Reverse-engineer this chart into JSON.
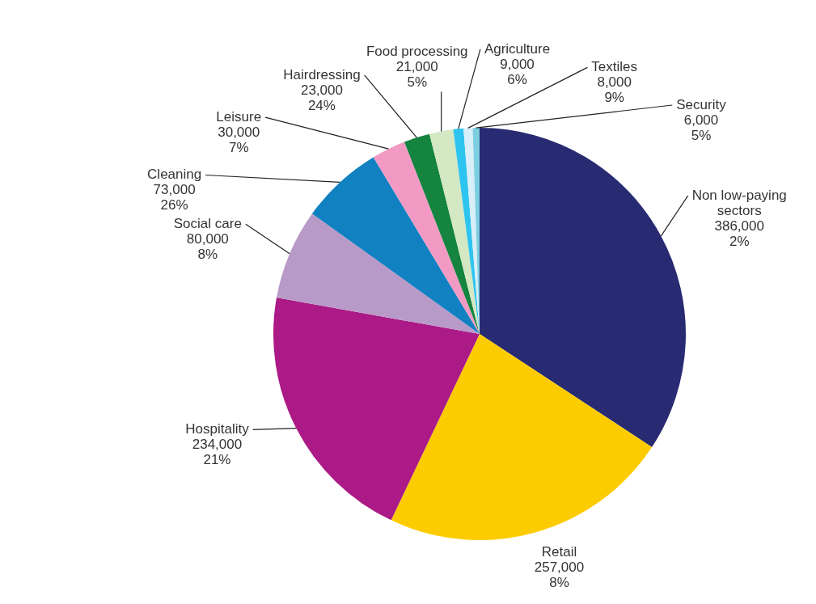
{
  "chart_data": {
    "type": "pie",
    "categories": [
      "Non low-paying sectors",
      "Retail",
      "Hospitality",
      "Social care",
      "Cleaning",
      "Leisure",
      "Hairdressing",
      "Food processing",
      "Agriculture",
      "Textiles",
      "Security"
    ],
    "values": [
      386000,
      257000,
      234000,
      80000,
      73000,
      30000,
      23000,
      21000,
      9000,
      8000,
      6000
    ],
    "colors": [
      "#282a72",
      "#fdcc00",
      "#ab1a86",
      "#b89ac8",
      "#1181c1",
      "#f39ac4",
      "#14843f",
      "#d4e8c4",
      "#2ec4f0",
      "#d8eef8",
      "#7ccfe0"
    ],
    "value_labels": [
      "386,000\n2%",
      "257,000\n8%",
      "234,000\n21%",
      "80,000\n8%",
      "73,000\n26%",
      "30,000\n7%",
      "23,000\n24%",
      "21,000\n5%",
      "9,000\n6%",
      "8,000\n9%",
      "6,000\n5%"
    ],
    "legend": false
  }
}
